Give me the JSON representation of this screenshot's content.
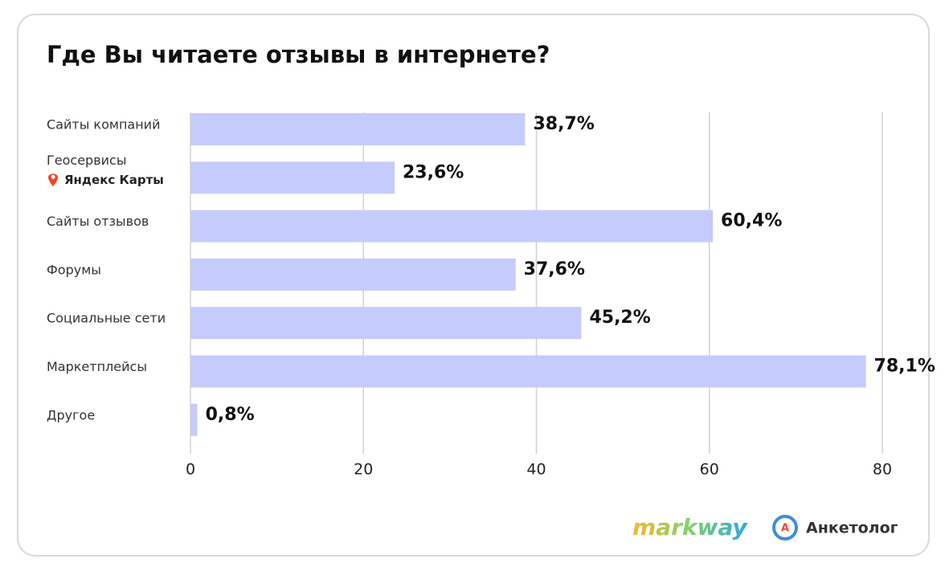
{
  "chart_data": {
    "type": "barh",
    "title": "Где Вы читаете отзывы в интернете?",
    "categories": [
      "Сайты компаний",
      "Геосервисы",
      "Сайты отзывов",
      "Форумы",
      "Социальные сети",
      "Маркетплейсы",
      "Другое"
    ],
    "category_logos": [
      null,
      "Яндекс Карты",
      null,
      null,
      null,
      null,
      null
    ],
    "values": [
      38.7,
      23.6,
      60.4,
      37.6,
      45.2,
      78.1,
      0.8
    ],
    "value_labels": [
      "38,7%",
      "23,6%",
      "60,4%",
      "37,6%",
      "45,2%",
      "78,1%",
      "0,8%"
    ],
    "color": "#c5cbfb",
    "xlim": [
      0,
      80
    ],
    "xticks": [
      0,
      20,
      40,
      60,
      80
    ],
    "grid": true
  },
  "footer": {
    "logos": [
      "markway",
      "Анкетолог"
    ]
  }
}
